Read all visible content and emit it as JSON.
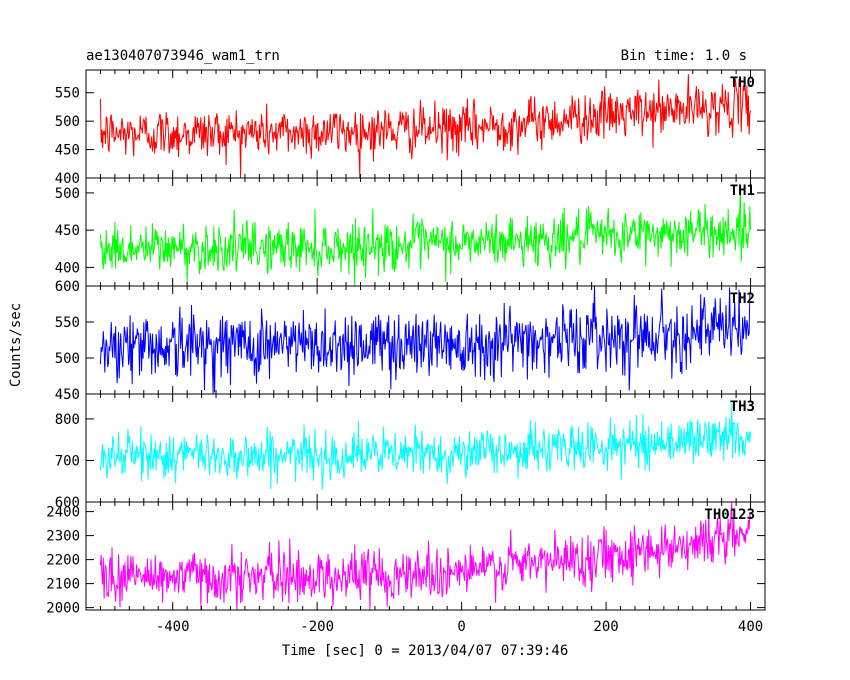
{
  "header": {
    "title": "ae130407073946_wam1_trn",
    "bin_time": "Bin time: 1.0 s"
  },
  "axes": {
    "xlabel": "Time [sec] 0 = 2013/04/07 07:39:46",
    "ylabel": "Counts/sec"
  },
  "chart_data": [
    {
      "type": "line",
      "name": "TH0",
      "color": "#ff0000",
      "xlim": [
        -520,
        420
      ],
      "ylim": [
        400,
        590
      ],
      "yticks": [
        400,
        450,
        500,
        550
      ],
      "xticks": [
        -400,
        -200,
        0,
        200,
        400
      ],
      "x_range": [
        -500,
        400
      ],
      "trend": [
        [
          -500,
          478
        ],
        [
          -250,
          480
        ],
        [
          0,
          486
        ],
        [
          150,
          505
        ],
        [
          300,
          520
        ],
        [
          400,
          528
        ]
      ],
      "noise_sd": 22
    },
    {
      "type": "line",
      "name": "TH1",
      "color": "#00ff00",
      "xlim": [
        -520,
        420
      ],
      "ylim": [
        375,
        520
      ],
      "yticks": [
        400,
        450,
        500
      ],
      "xticks": [
        -400,
        -200,
        0,
        200,
        400
      ],
      "x_range": [
        -500,
        400
      ],
      "trend": [
        [
          -500,
          425
        ],
        [
          -200,
          427
        ],
        [
          0,
          432
        ],
        [
          200,
          442
        ],
        [
          400,
          450
        ]
      ],
      "noise_sd": 17
    },
    {
      "type": "line",
      "name": "TH2",
      "color": "#0000ff",
      "xlim": [
        -520,
        420
      ],
      "ylim": [
        450,
        600
      ],
      "yticks": [
        450,
        500,
        550,
        600
      ],
      "xticks": [
        -400,
        -200,
        0,
        200,
        400
      ],
      "x_range": [
        -500,
        400
      ],
      "trend": [
        [
          -500,
          518
        ],
        [
          -200,
          519
        ],
        [
          0,
          522
        ],
        [
          200,
          530
        ],
        [
          400,
          542
        ]
      ],
      "noise_sd": 24
    },
    {
      "type": "line",
      "name": "TH3",
      "color": "#00ffff",
      "xlim": [
        -520,
        420
      ],
      "ylim": [
        600,
        860
      ],
      "yticks": [
        600,
        700,
        800
      ],
      "xticks": [
        -400,
        -200,
        0,
        200,
        400
      ],
      "x_range": [
        -500,
        400
      ],
      "trend": [
        [
          -500,
          712
        ],
        [
          -200,
          712
        ],
        [
          0,
          718
        ],
        [
          200,
          735
        ],
        [
          400,
          760
        ]
      ],
      "noise_sd": 28
    },
    {
      "type": "line",
      "name": "TH0123",
      "color": "#ff00ff",
      "xlim": [
        -520,
        420
      ],
      "ylim": [
        1990,
        2440
      ],
      "yticks": [
        2000,
        2100,
        2200,
        2300,
        2400
      ],
      "xticks": [
        -400,
        -200,
        0,
        200,
        400
      ],
      "x_range": [
        -500,
        400
      ],
      "trend": [
        [
          -500,
          2130
        ],
        [
          -200,
          2130
        ],
        [
          0,
          2150
        ],
        [
          150,
          2200
        ],
        [
          300,
          2260
        ],
        [
          400,
          2310
        ]
      ],
      "noise_sd": 55
    }
  ]
}
